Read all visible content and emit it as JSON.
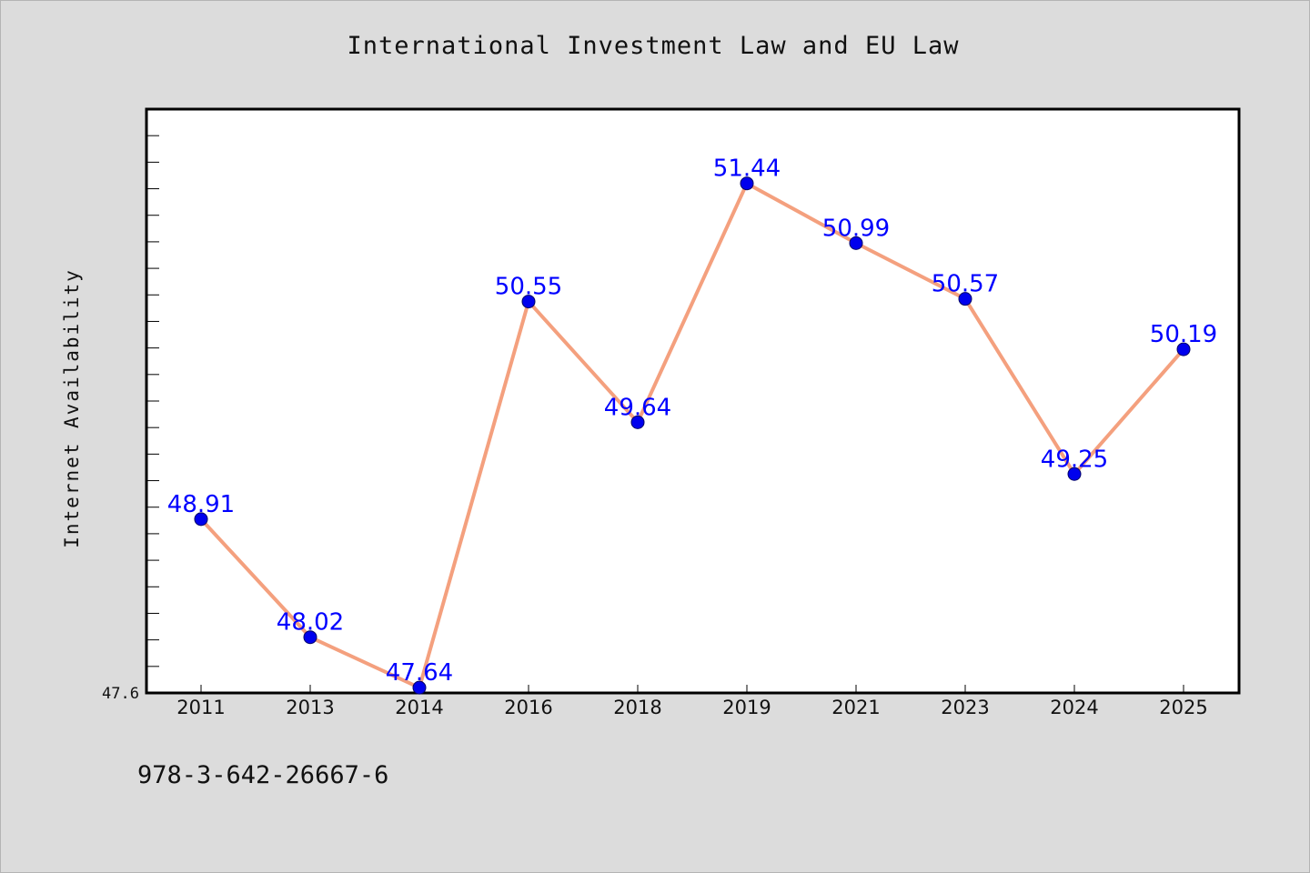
{
  "chart_data": {
    "type": "line",
    "title": "International Investment Law and EU Law",
    "xlabel": "",
    "ylabel": "Internet Availability",
    "categories": [
      "2011",
      "2013",
      "2014",
      "2016",
      "2018",
      "2019",
      "2021",
      "2023",
      "2024",
      "2025"
    ],
    "series": [
      {
        "values": [
          48.91,
          48.02,
          47.64,
          50.55,
          49.64,
          51.44,
          50.99,
          50.57,
          49.25,
          50.19
        ],
        "labels": [
          "48.91",
          "48.02",
          "47.64",
          "50.55",
          "49.64",
          "51.44",
          "50.99",
          "50.57",
          "49.25",
          "50.19"
        ]
      }
    ],
    "ylim": [
      47.6,
      52.0
    ],
    "ytick_labels": [
      "47.6"
    ],
    "grid": false,
    "line_color": "#f4a07e",
    "marker_color": "#0000ee",
    "label_color": "#0000ff"
  },
  "footnote": "978-3-642-26667-6"
}
